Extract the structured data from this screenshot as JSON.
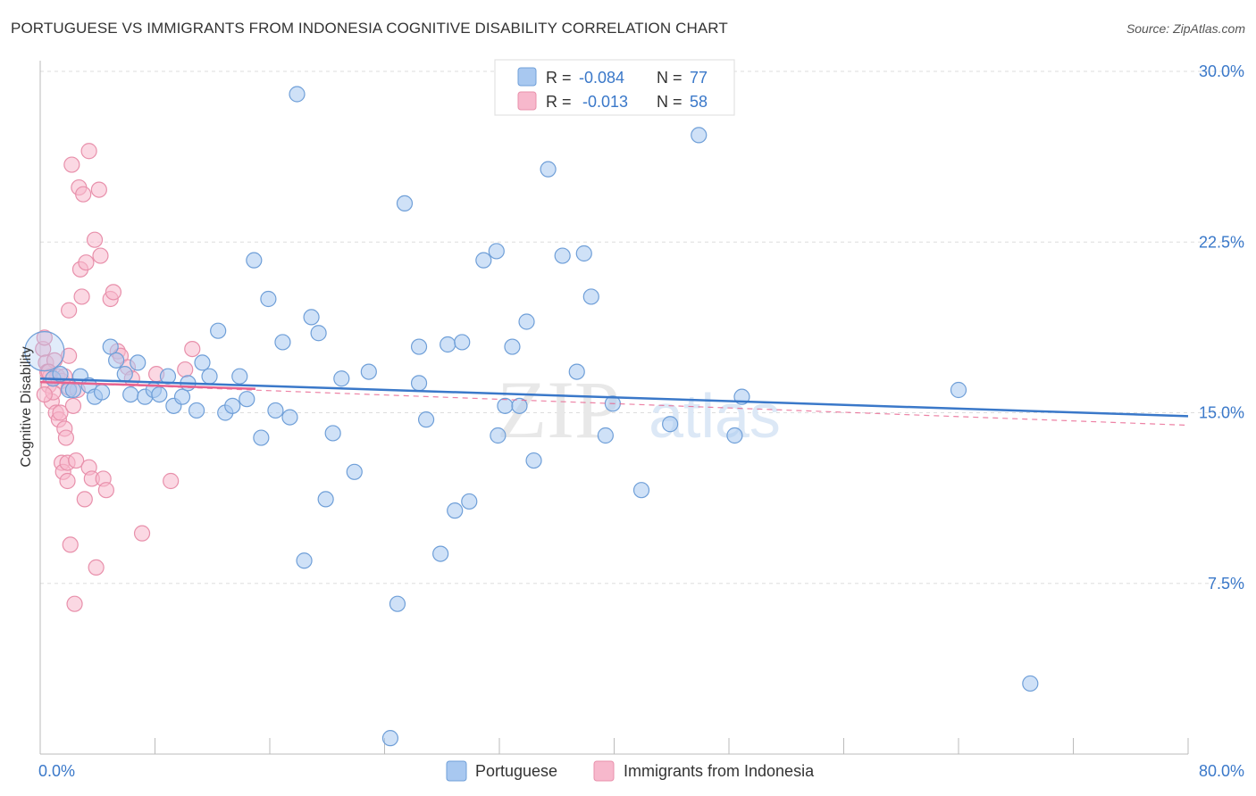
{
  "header": {
    "title": "PORTUGUESE VS IMMIGRANTS FROM INDONESIA COGNITIVE DISABILITY CORRELATION CHART",
    "source": "Source: ZipAtlas.com"
  },
  "watermark": {
    "zip": "ZIP",
    "atlas": "atlas"
  },
  "legend_top": [
    {
      "r_label": "R =",
      "r_value": "-0.084",
      "n_label": "N =",
      "n_value": "77",
      "color": "#a8c8f0",
      "stroke": "#6f9fd8"
    },
    {
      "r_label": "R =",
      "r_value": "-0.013",
      "n_label": "N =",
      "n_value": "58",
      "color": "#f7b8cc",
      "stroke": "#e890ab"
    }
  ],
  "legend_bottom": [
    {
      "label": "Portuguese",
      "color": "#a8c8f0",
      "stroke": "#6f9fd8"
    },
    {
      "label": "Immigrants from Indonesia",
      "color": "#f7b8cc",
      "stroke": "#e890ab"
    }
  ],
  "chart_data": {
    "type": "scatter",
    "title": "PORTUGUESE VS IMMIGRANTS FROM INDONESIA COGNITIVE DISABILITY CORRELATION CHART",
    "xlabel": "",
    "ylabel": "Cognitive Disability",
    "xlim": [
      0,
      80
    ],
    "ylim": [
      0,
      30.0
    ],
    "x_tick_labels": [
      "0.0%",
      "80.0%"
    ],
    "y_ticks": [
      7.5,
      15.0,
      22.5,
      30.0
    ],
    "y_tick_labels": [
      "7.5%",
      "15.0%",
      "22.5%",
      "30.0%"
    ],
    "grid": true,
    "legend_position": "top-center",
    "colors": {
      "portuguese": "#3a78c9",
      "indonesia": "#e8638f",
      "axis_text": "#3a78c9"
    },
    "series": [
      {
        "name": "Portuguese",
        "color": "#a8c8f0",
        "trend": {
          "x": [
            0,
            80
          ],
          "y": [
            16.5,
            14.85
          ],
          "color": "#3a78c9",
          "style": "solid"
        },
        "points": [
          [
            0.3,
            17.7
          ],
          [
            0.9,
            16.5
          ],
          [
            1.4,
            16.7
          ],
          [
            2.0,
            16.0
          ],
          [
            2.3,
            16.0
          ],
          [
            2.8,
            16.6
          ],
          [
            3.4,
            16.2
          ],
          [
            3.8,
            15.7
          ],
          [
            4.3,
            15.9
          ],
          [
            4.9,
            17.9
          ],
          [
            5.3,
            17.3
          ],
          [
            5.9,
            16.7
          ],
          [
            6.3,
            15.8
          ],
          [
            6.8,
            17.2
          ],
          [
            7.3,
            15.7
          ],
          [
            7.9,
            16.0
          ],
          [
            8.3,
            15.8
          ],
          [
            8.9,
            16.6
          ],
          [
            9.3,
            15.3
          ],
          [
            9.9,
            15.7
          ],
          [
            10.3,
            16.3
          ],
          [
            10.9,
            15.1
          ],
          [
            11.3,
            17.2
          ],
          [
            11.8,
            16.6
          ],
          [
            12.4,
            18.6
          ],
          [
            12.9,
            15.0
          ],
          [
            13.4,
            15.3
          ],
          [
            13.9,
            16.6
          ],
          [
            14.4,
            15.6
          ],
          [
            14.9,
            21.7
          ],
          [
            15.4,
            13.9
          ],
          [
            15.9,
            20.0
          ],
          [
            16.4,
            15.1
          ],
          [
            16.9,
            18.1
          ],
          [
            17.4,
            14.8
          ],
          [
            17.9,
            29.0
          ],
          [
            18.4,
            8.5
          ],
          [
            18.9,
            19.2
          ],
          [
            19.4,
            18.5
          ],
          [
            19.9,
            11.2
          ],
          [
            20.4,
            14.1
          ],
          [
            21.0,
            16.5
          ],
          [
            21.9,
            12.4
          ],
          [
            22.9,
            16.8
          ],
          [
            24.4,
            0.7
          ],
          [
            24.9,
            6.6
          ],
          [
            25.4,
            24.2
          ],
          [
            26.4,
            16.3
          ],
          [
            26.4,
            17.9
          ],
          [
            26.9,
            14.7
          ],
          [
            28.9,
            10.7
          ],
          [
            27.9,
            8.8
          ],
          [
            28.4,
            18.0
          ],
          [
            29.4,
            18.1
          ],
          [
            29.9,
            11.1
          ],
          [
            30.9,
            21.7
          ],
          [
            31.9,
            14.0
          ],
          [
            31.8,
            22.1
          ],
          [
            32.4,
            15.3
          ],
          [
            32.9,
            17.9
          ],
          [
            33.4,
            15.3
          ],
          [
            33.9,
            19.0
          ],
          [
            34.4,
            12.9
          ],
          [
            35.4,
            25.7
          ],
          [
            36.4,
            21.9
          ],
          [
            37.4,
            16.8
          ],
          [
            38.4,
            20.1
          ],
          [
            37.9,
            22.0
          ],
          [
            39.4,
            14.0
          ],
          [
            39.9,
            15.4
          ],
          [
            41.9,
            11.6
          ],
          [
            43.9,
            14.5
          ],
          [
            45.9,
            27.2
          ],
          [
            48.4,
            14.0
          ],
          [
            48.9,
            15.7
          ],
          [
            64.0,
            16.0
          ],
          [
            69.0,
            3.1
          ]
        ]
      },
      {
        "name": "Immigrants from Indonesia",
        "color": "#f7b8cc",
        "trend": {
          "x": [
            0,
            15
          ],
          "y": [
            16.35,
            16.05
          ],
          "color": "#e8638f",
          "style": "solid"
        },
        "trend_extended": {
          "x": [
            0,
            80
          ],
          "y": [
            16.35,
            14.45
          ],
          "color": "#e8638f",
          "style": "dashed"
        },
        "points": [
          [
            0.2,
            17.8
          ],
          [
            0.3,
            18.3
          ],
          [
            0.4,
            17.2
          ],
          [
            0.5,
            16.8
          ],
          [
            0.6,
            16.2
          ],
          [
            0.7,
            16.6
          ],
          [
            0.8,
            15.5
          ],
          [
            0.9,
            15.9
          ],
          [
            1.0,
            17.3
          ],
          [
            1.1,
            15.0
          ],
          [
            1.2,
            16.6
          ],
          [
            1.3,
            14.7
          ],
          [
            1.4,
            15.0
          ],
          [
            1.5,
            16.4
          ],
          [
            1.5,
            12.8
          ],
          [
            1.6,
            12.4
          ],
          [
            1.7,
            14.3
          ],
          [
            1.8,
            13.9
          ],
          [
            1.9,
            12.8
          ],
          [
            2.0,
            16.1
          ],
          [
            2.0,
            17.5
          ],
          [
            2.0,
            19.5
          ],
          [
            2.1,
            9.2
          ],
          [
            1.9,
            12.0
          ],
          [
            1.7,
            16.6
          ],
          [
            2.2,
            25.9
          ],
          [
            2.3,
            15.3
          ],
          [
            2.4,
            6.6
          ],
          [
            2.5,
            12.9
          ],
          [
            2.6,
            16.0
          ],
          [
            2.7,
            24.9
          ],
          [
            2.8,
            21.3
          ],
          [
            2.9,
            20.1
          ],
          [
            3.0,
            24.6
          ],
          [
            3.1,
            11.2
          ],
          [
            3.2,
            21.6
          ],
          [
            3.4,
            12.6
          ],
          [
            3.4,
            26.5
          ],
          [
            3.6,
            12.1
          ],
          [
            3.8,
            22.6
          ],
          [
            3.9,
            8.2
          ],
          [
            4.1,
            24.8
          ],
          [
            4.2,
            21.9
          ],
          [
            4.4,
            12.1
          ],
          [
            4.6,
            11.6
          ],
          [
            4.9,
            20.0
          ],
          [
            5.1,
            20.3
          ],
          [
            5.4,
            17.7
          ],
          [
            5.6,
            17.5
          ],
          [
            6.1,
            17.0
          ],
          [
            6.4,
            16.5
          ],
          [
            7.1,
            9.7
          ],
          [
            8.1,
            16.7
          ],
          [
            9.1,
            12.0
          ],
          [
            10.1,
            16.9
          ],
          [
            10.6,
            17.8
          ],
          [
            0.3,
            15.8
          ],
          [
            0.6,
            16.8
          ]
        ]
      }
    ]
  }
}
